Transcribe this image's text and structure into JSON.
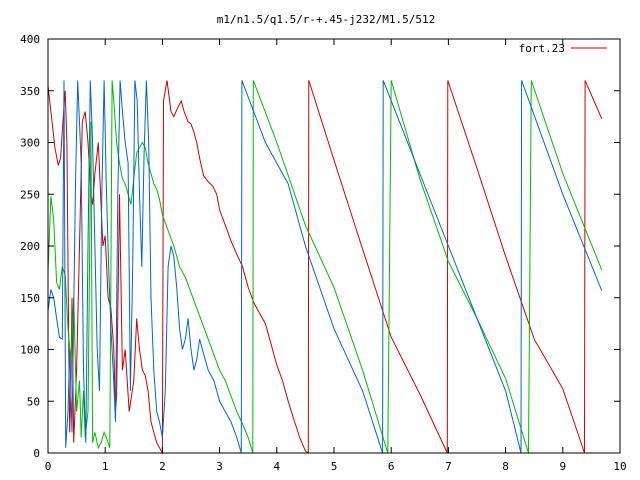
{
  "chart_data": {
    "type": "line",
    "title": "m1/n1.5/q1.5/r-+.45-j232/M1.5/512",
    "xlabel": "",
    "ylabel": "",
    "xlim": [
      0,
      10
    ],
    "ylim": [
      0,
      400
    ],
    "x_ticks": [
      "0",
      "1",
      "2",
      "3",
      "4",
      "5",
      "6",
      "7",
      "8",
      "9",
      "10"
    ],
    "y_ticks": [
      "0",
      "50",
      "100",
      "150",
      "200",
      "250",
      "300",
      "350",
      "400"
    ],
    "legend_position": "top-right",
    "grid": false,
    "series": [
      {
        "name": "fort.23",
        "color": "#cc0000",
        "points": [
          [
            0,
            355
          ],
          [
            0.05,
            330
          ],
          [
            0.12,
            295
          ],
          [
            0.18,
            278
          ],
          [
            0.22,
            285
          ],
          [
            0.26,
            320
          ],
          [
            0.3,
            350
          ],
          [
            0.33,
            300
          ],
          [
            0.36,
            120
          ],
          [
            0.38,
            20
          ],
          [
            0.4,
            60
          ],
          [
            0.42,
            150
          ],
          [
            0.45,
            10
          ],
          [
            0.5,
            80
          ],
          [
            0.55,
            200
          ],
          [
            0.6,
            320
          ],
          [
            0.65,
            330
          ],
          [
            0.7,
            300
          ],
          [
            0.75,
            250
          ],
          [
            0.78,
            240
          ],
          [
            0.82,
            270
          ],
          [
            0.88,
            300
          ],
          [
            0.92,
            250
          ],
          [
            0.96,
            200
          ],
          [
            1.0,
            210
          ],
          [
            1.05,
            150
          ],
          [
            1.1,
            140
          ],
          [
            1.15,
            100
          ],
          [
            1.18,
            40
          ],
          [
            1.2,
            55
          ],
          [
            1.25,
            250
          ],
          [
            1.3,
            80
          ],
          [
            1.35,
            100
          ],
          [
            1.42,
            40
          ],
          [
            1.5,
            70
          ],
          [
            1.55,
            130
          ],
          [
            1.6,
            100
          ],
          [
            1.65,
            80
          ],
          [
            1.7,
            75
          ],
          [
            1.75,
            60
          ],
          [
            1.8,
            30
          ],
          [
            1.85,
            20
          ],
          [
            1.9,
            10
          ],
          [
            1.95,
            5
          ],
          [
            2.0,
            0
          ],
          [
            2.02,
            340
          ],
          [
            2.08,
            360
          ],
          [
            2.15,
            330
          ],
          [
            2.2,
            325
          ],
          [
            2.28,
            335
          ],
          [
            2.33,
            340
          ],
          [
            2.38,
            330
          ],
          [
            2.45,
            320
          ],
          [
            2.5,
            318
          ],
          [
            2.55,
            310
          ],
          [
            2.6,
            300
          ],
          [
            2.65,
            285
          ],
          [
            2.72,
            268
          ],
          [
            2.8,
            262
          ],
          [
            2.88,
            258
          ],
          [
            2.95,
            250
          ],
          [
            3.0,
            235
          ],
          [
            3.1,
            220
          ],
          [
            3.2,
            205
          ],
          [
            3.3,
            192
          ],
          [
            3.4,
            180
          ],
          [
            3.5,
            160
          ],
          [
            3.6,
            145
          ],
          [
            3.7,
            135
          ],
          [
            3.8,
            125
          ],
          [
            3.9,
            105
          ],
          [
            4.0,
            85
          ],
          [
            4.1,
            70
          ],
          [
            4.2,
            50
          ],
          [
            4.3,
            32
          ],
          [
            4.4,
            15
          ],
          [
            4.5,
            2
          ],
          [
            4.55,
            0
          ],
          [
            4.56,
            360
          ],
          [
            5.0,
            283
          ],
          [
            5.5,
            197
          ],
          [
            5.97,
            117
          ],
          [
            6.0,
            112
          ],
          [
            6.5,
            57
          ],
          [
            6.98,
            0
          ],
          [
            6.99,
            360
          ],
          [
            7.5,
            275
          ],
          [
            8.0,
            190
          ],
          [
            8.5,
            110
          ],
          [
            9.0,
            62
          ],
          [
            9.38,
            0
          ],
          [
            9.39,
            360
          ],
          [
            9.68,
            323
          ]
        ]
      },
      {
        "name": "",
        "color": "#00bb00",
        "points": [
          [
            0,
            175
          ],
          [
            0.05,
            248
          ],
          [
            0.1,
            225
          ],
          [
            0.15,
            165
          ],
          [
            0.2,
            158
          ],
          [
            0.25,
            180
          ],
          [
            0.3,
            172
          ],
          [
            0.35,
            120
          ],
          [
            0.4,
            90
          ],
          [
            0.45,
            150
          ],
          [
            0.5,
            40
          ],
          [
            0.55,
            70
          ],
          [
            0.58,
            15
          ],
          [
            0.62,
            60
          ],
          [
            0.65,
            15
          ],
          [
            0.7,
            40
          ],
          [
            0.72,
            150
          ],
          [
            0.75,
            320
          ],
          [
            0.78,
            10
          ],
          [
            0.82,
            20
          ],
          [
            0.88,
            5
          ],
          [
            0.93,
            10
          ],
          [
            0.98,
            20
          ],
          [
            1.02,
            15
          ],
          [
            1.05,
            10
          ],
          [
            1.08,
            5
          ],
          [
            1.12,
            360
          ],
          [
            1.15,
            340
          ],
          [
            1.2,
            300
          ],
          [
            1.25,
            280
          ],
          [
            1.3,
            265
          ],
          [
            1.35,
            260
          ],
          [
            1.4,
            250
          ],
          [
            1.45,
            240
          ],
          [
            1.5,
            265
          ],
          [
            1.55,
            290
          ],
          [
            1.6,
            295
          ],
          [
            1.65,
            300
          ],
          [
            1.7,
            295
          ],
          [
            1.75,
            280
          ],
          [
            1.8,
            270
          ],
          [
            1.85,
            260
          ],
          [
            1.9,
            255
          ],
          [
            1.95,
            245
          ],
          [
            2.0,
            230
          ],
          [
            2.1,
            215
          ],
          [
            2.2,
            200
          ],
          [
            2.3,
            180
          ],
          [
            2.4,
            170
          ],
          [
            2.5,
            155
          ],
          [
            2.6,
            140
          ],
          [
            2.7,
            125
          ],
          [
            2.8,
            110
          ],
          [
            2.9,
            95
          ],
          [
            3.0,
            80
          ],
          [
            3.1,
            70
          ],
          [
            3.2,
            55
          ],
          [
            3.3,
            40
          ],
          [
            3.4,
            28
          ],
          [
            3.5,
            15
          ],
          [
            3.58,
            0
          ],
          [
            3.59,
            360
          ],
          [
            4.0,
            300
          ],
          [
            4.5,
            220
          ],
          [
            5.0,
            160
          ],
          [
            5.5,
            80
          ],
          [
            5.94,
            0
          ],
          [
            6.0,
            360
          ],
          [
            6.5,
            265
          ],
          [
            7.0,
            185
          ],
          [
            7.5,
            130
          ],
          [
            8.0,
            72
          ],
          [
            8.4,
            0
          ],
          [
            8.45,
            360
          ],
          [
            9.0,
            270
          ],
          [
            9.68,
            177
          ]
        ]
      },
      {
        "name": "",
        "color": "#0066cc",
        "points": [
          [
            0,
            137
          ],
          [
            0.05,
            158
          ],
          [
            0.1,
            150
          ],
          [
            0.15,
            130
          ],
          [
            0.2,
            112
          ],
          [
            0.25,
            110
          ],
          [
            0.28,
            360
          ],
          [
            0.31,
            5
          ],
          [
            0.35,
            40
          ],
          [
            0.38,
            100
          ],
          [
            0.42,
            20
          ],
          [
            0.48,
            260
          ],
          [
            0.52,
            360
          ],
          [
            0.58,
            280
          ],
          [
            0.62,
            80
          ],
          [
            0.66,
            10
          ],
          [
            0.7,
            200
          ],
          [
            0.74,
            360
          ],
          [
            0.78,
            300
          ],
          [
            0.82,
            200
          ],
          [
            0.86,
            100
          ],
          [
            0.9,
            60
          ],
          [
            0.94,
            250
          ],
          [
            0.98,
            360
          ],
          [
            1.02,
            260
          ],
          [
            1.06,
            180
          ],
          [
            1.1,
            120
          ],
          [
            1.14,
            80
          ],
          [
            1.18,
            30
          ],
          [
            1.22,
            250
          ],
          [
            1.26,
            360
          ],
          [
            1.3,
            330
          ],
          [
            1.35,
            300
          ],
          [
            1.4,
            280
          ],
          [
            1.44,
            60
          ],
          [
            1.48,
            180
          ],
          [
            1.52,
            360
          ],
          [
            1.56,
            340
          ],
          [
            1.6,
            250
          ],
          [
            1.64,
            180
          ],
          [
            1.68,
            290
          ],
          [
            1.72,
            360
          ],
          [
            1.76,
            300
          ],
          [
            1.8,
            150
          ],
          [
            1.85,
            80
          ],
          [
            1.9,
            40
          ],
          [
            1.95,
            30
          ],
          [
            2.0,
            15
          ],
          [
            2.05,
            60
          ],
          [
            2.1,
            180
          ],
          [
            2.15,
            200
          ],
          [
            2.2,
            190
          ],
          [
            2.25,
            160
          ],
          [
            2.3,
            120
          ],
          [
            2.35,
            100
          ],
          [
            2.4,
            110
          ],
          [
            2.45,
            130
          ],
          [
            2.5,
            100
          ],
          [
            2.55,
            80
          ],
          [
            2.6,
            90
          ],
          [
            2.65,
            110
          ],
          [
            2.7,
            100
          ],
          [
            2.8,
            80
          ],
          [
            2.9,
            70
          ],
          [
            3.0,
            50
          ],
          [
            3.1,
            40
          ],
          [
            3.2,
            30
          ],
          [
            3.3,
            15
          ],
          [
            3.38,
            0
          ],
          [
            3.39,
            360
          ],
          [
            3.8,
            300
          ],
          [
            4.2,
            260
          ],
          [
            4.5,
            200
          ],
          [
            5.0,
            120
          ],
          [
            5.5,
            60
          ],
          [
            5.85,
            0
          ],
          [
            5.86,
            360
          ],
          [
            6.5,
            270
          ],
          [
            7.0,
            200
          ],
          [
            7.5,
            130
          ],
          [
            8.0,
            60
          ],
          [
            8.27,
            0
          ],
          [
            8.28,
            360
          ],
          [
            9.0,
            250
          ],
          [
            9.68,
            157
          ]
        ]
      }
    ]
  }
}
